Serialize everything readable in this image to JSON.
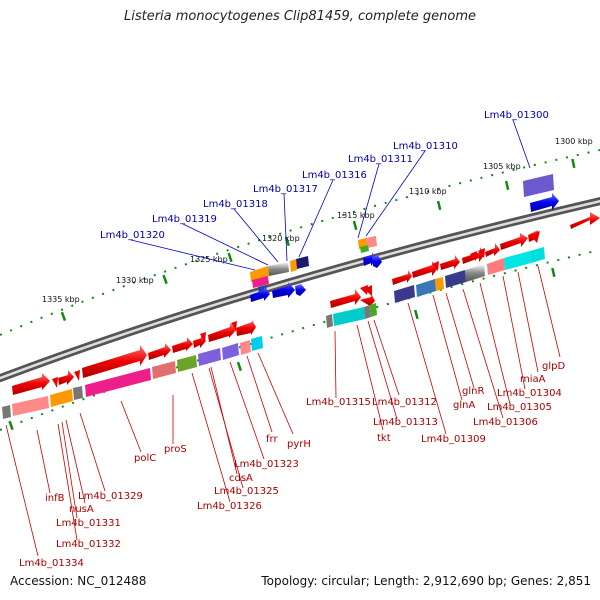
{
  "title": "Listeria monocytogenes Clip81459, complete genome",
  "accession": "Accession: NC_012488",
  "summary": "Topology: circular; Length: 2,912,690 bp; Genes: 2,851",
  "scale_labels": [
    "1300 kbp",
    "1305 kbp",
    "1310 kbp",
    "1315 kbp",
    "1320 kbp",
    "1325 kbp",
    "1330 kbp",
    "1335 kbp"
  ],
  "blue_labels": [
    "Lm4b_01300",
    "Lm4b_01310",
    "Lm4b_01311",
    "Lm4b_01316",
    "Lm4b_01317",
    "Lm4b_01318",
    "Lm4b_01319",
    "Lm4b_01320"
  ],
  "red_labels": [
    "glpD",
    "miaA",
    "Lm4b_01304",
    "Lm4b_01305",
    "Lm4b_01306",
    "glnR",
    "glnA",
    "Lm4b_01309",
    "Lm4b_01312",
    "Lm4b_01313",
    "Lm4b_01315",
    "tkt",
    "pyrH",
    "frr",
    "Lm4b_01323",
    "cdsA",
    "Lm4b_01325",
    "Lm4b_01326",
    "proS",
    "polC",
    "Lm4b_01329",
    "nusA",
    "Lm4b_01331",
    "Lm4b_01332",
    "infB",
    "Lm4b_01334"
  ],
  "colors": {
    "backbone": "#777777",
    "gene_red": "#ee0000",
    "gene_blue": "#0000ee",
    "ticks": "#118811",
    "blue_label": "#0000aa",
    "red_label": "#aa0000"
  }
}
